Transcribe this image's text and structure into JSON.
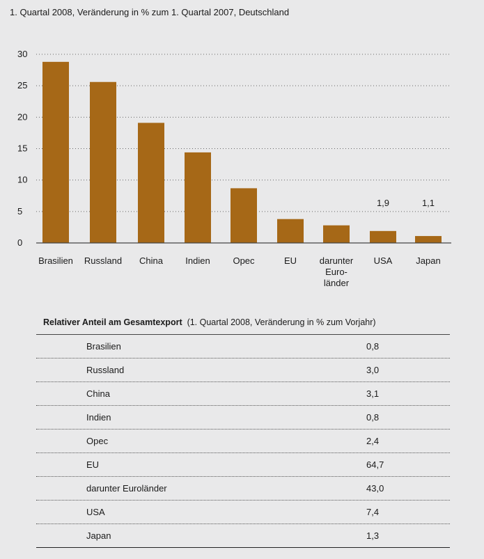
{
  "subtitle": "1. Quartal 2008, Veränderung in % zum 1. Quartal 2007, Deutschland",
  "colors": {
    "bar": "#a66817",
    "background": "#e9e9ea",
    "grid": "#666666"
  },
  "chart_data": {
    "type": "bar",
    "categories": [
      "Brasilien",
      "Russland",
      "China",
      "Indien",
      "Opec",
      "EU",
      "darunter Euroländer",
      "USA",
      "Japan"
    ],
    "category_label_lines": [
      [
        "Brasilien"
      ],
      [
        "Russland"
      ],
      [
        "China"
      ],
      [
        "Indien"
      ],
      [
        "Opec"
      ],
      [
        "EU"
      ],
      [
        "darunter",
        "Euro-",
        "länder"
      ],
      [
        "USA"
      ],
      [
        "Japan"
      ]
    ],
    "values": [
      28.8,
      25.6,
      19.1,
      14.4,
      8.7,
      3.8,
      2.8,
      1.9,
      1.1
    ],
    "data_labels": [
      null,
      null,
      null,
      null,
      null,
      null,
      null,
      "1,9",
      "1,1"
    ],
    "yticks": [
      0,
      5,
      10,
      15,
      20,
      25,
      30
    ],
    "ylim": [
      0,
      30
    ],
    "grid": true,
    "title": "",
    "xlabel": "",
    "ylabel": ""
  },
  "table": {
    "title_bold": "Relativer Anteil am Gesamtexport",
    "title_rest": "(1. Quartal 2008, Veränderung in % zum Vorjahr)",
    "rows": [
      {
        "label": "Brasilien",
        "value": "0,8"
      },
      {
        "label": "Russland",
        "value": "3,0"
      },
      {
        "label": "China",
        "value": "3,1"
      },
      {
        "label": "Indien",
        "value": "0,8"
      },
      {
        "label": "Opec",
        "value": "2,4"
      },
      {
        "label": "EU",
        "value": "64,7"
      },
      {
        "label": "darunter Euroländer",
        "value": "43,0"
      },
      {
        "label": "USA",
        "value": "7,4"
      },
      {
        "label": "Japan",
        "value": "1,3"
      }
    ]
  }
}
